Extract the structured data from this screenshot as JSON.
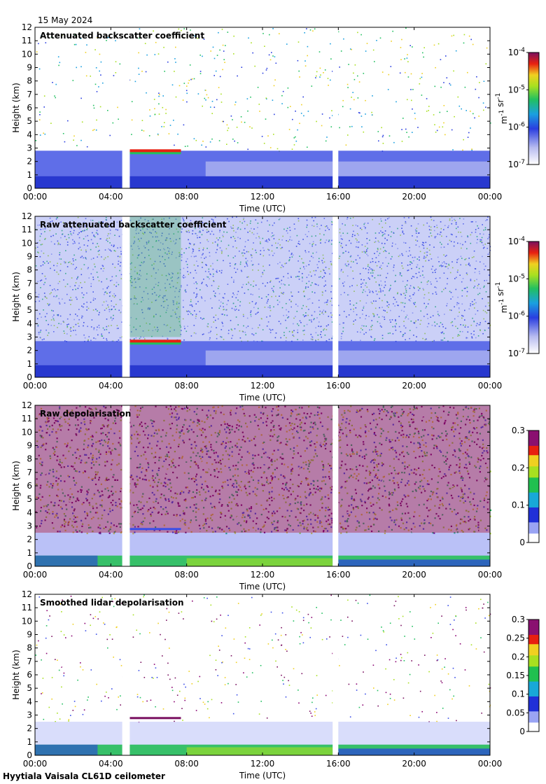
{
  "date_label": "15 May 2024",
  "footer": "Hyytiala Vaisala CL61D ceilometer",
  "chart_data": [
    {
      "type": "heatmap",
      "title": "Attenuated backscatter coefficient",
      "xlabel": "Time (UTC)",
      "ylabel": "Height (km)",
      "xlim": [
        0,
        24
      ],
      "ylim": [
        0,
        12
      ],
      "x_ticks": [
        "00:00",
        "04:00",
        "08:00",
        "12:00",
        "16:00",
        "20:00",
        "00:00"
      ],
      "y_ticks": [
        "0",
        "1",
        "2",
        "3",
        "4",
        "5",
        "6",
        "7",
        "8",
        "9",
        "10",
        "11",
        "12"
      ],
      "data_gaps_hours": [
        [
          4.6,
          5.0
        ],
        [
          15.7,
          16.0
        ]
      ],
      "colorbar": {
        "scale": "log",
        "range": [
          1e-07,
          0.0001
        ],
        "unit": "m-1 sr-1",
        "ticks": [
          "10-7",
          "10-6",
          "10-5",
          "10-4"
        ]
      },
      "features": {
        "boundary_layer_top_km": 2.8,
        "cloud_layer": {
          "from_h": 5.0,
          "to_h": 7.7,
          "height_km": 2.8
        },
        "noise": "sparse"
      }
    },
    {
      "type": "heatmap",
      "title": "Raw attenuated backscatter coefficient",
      "xlabel": "Time (UTC)",
      "ylabel": "Height (km)",
      "xlim": [
        0,
        24
      ],
      "ylim": [
        0,
        12
      ],
      "x_ticks": [
        "00:00",
        "04:00",
        "08:00",
        "12:00",
        "16:00",
        "20:00",
        "00:00"
      ],
      "y_ticks": [
        "0",
        "1",
        "2",
        "3",
        "4",
        "5",
        "6",
        "7",
        "8",
        "9",
        "10",
        "11",
        "12"
      ],
      "data_gaps_hours": [
        [
          4.6,
          5.0
        ],
        [
          15.7,
          16.0
        ]
      ],
      "colorbar": {
        "scale": "log",
        "range": [
          1e-07,
          0.0001
        ],
        "unit": "m-1 sr-1",
        "ticks": [
          "10-7",
          "10-6",
          "10-5",
          "10-4"
        ]
      },
      "features": {
        "boundary_layer_top_km": 2.7,
        "cloud_layer": {
          "from_h": 5.0,
          "to_h": 7.7,
          "height_km": 2.7
        },
        "noise": "dense"
      }
    },
    {
      "type": "heatmap",
      "title": "Raw depolarisation",
      "xlabel": "Time (UTC)",
      "ylabel": "Height (km)",
      "xlim": [
        0,
        24
      ],
      "ylim": [
        0,
        12
      ],
      "x_ticks": [
        "00:00",
        "04:00",
        "08:00",
        "12:00",
        "16:00",
        "20:00",
        "00:00"
      ],
      "y_ticks": [
        "0",
        "1",
        "2",
        "3",
        "4",
        "5",
        "6",
        "7",
        "8",
        "9",
        "10",
        "11",
        "12"
      ],
      "data_gaps_hours": [
        [
          4.6,
          5.0
        ],
        [
          15.7,
          16.0
        ]
      ],
      "colorbar": {
        "scale": "linear",
        "range": [
          0,
          0.3
        ],
        "unit": "",
        "ticks": [
          "0",
          "0.1",
          "0.2",
          "0.3"
        ]
      },
      "features": {
        "boundary_layer_top_km": 2.5,
        "noise": "saturated"
      }
    },
    {
      "type": "heatmap",
      "title": "Smoothed lidar depolarisation",
      "xlabel": "Time (UTC)",
      "ylabel": "Height (km)",
      "xlim": [
        0,
        24
      ],
      "ylim": [
        0,
        12
      ],
      "x_ticks": [
        "00:00",
        "04:00",
        "08:00",
        "12:00",
        "16:00",
        "20:00",
        "00:00"
      ],
      "y_ticks": [
        "0",
        "1",
        "2",
        "3",
        "4",
        "5",
        "6",
        "7",
        "8",
        "9",
        "10",
        "11",
        "12"
      ],
      "data_gaps_hours": [
        [
          4.6,
          5.0
        ],
        [
          15.7,
          16.0
        ]
      ],
      "colorbar": {
        "scale": "linear",
        "range": [
          0,
          0.3
        ],
        "unit": "",
        "ticks": [
          "0",
          "0.05",
          "0.1",
          "0.15",
          "0.2",
          "0.25",
          "0.3"
        ]
      },
      "features": {
        "boundary_layer_top_km": 2.5,
        "noise": "sparse"
      }
    }
  ]
}
